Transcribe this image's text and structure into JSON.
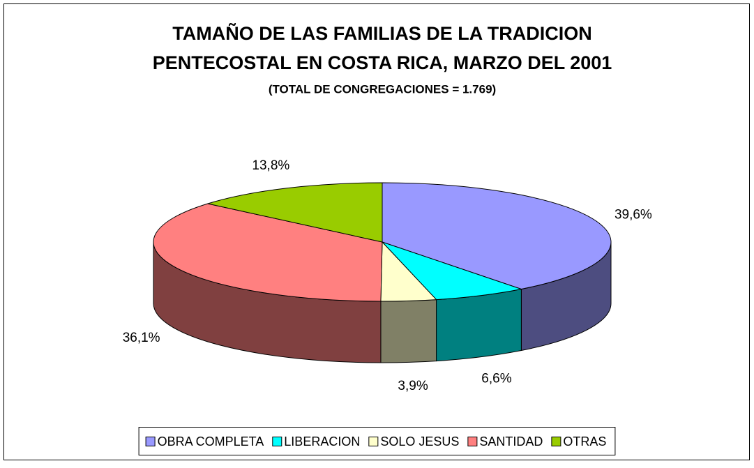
{
  "chart_data": {
    "type": "pie3d",
    "title": [
      "TAMAÑO DE LAS FAMILIAS DE LA TRADICION",
      "PENTECOSTAL EN COSTA RICA, MARZO DEL 2001"
    ],
    "subtitle": "(TOTAL DE CONGREGACIONES = 1.769)",
    "categories": [
      "OBRA COMPLETA",
      "LIBERACION",
      "SOLO JESUS",
      "SANTIDAD",
      "OTRAS"
    ],
    "values": [
      39.6,
      6.6,
      3.9,
      36.1,
      13.8
    ],
    "value_labels": [
      "39,6%",
      "6,6%",
      "3,9%",
      "36,1%",
      "13,8%"
    ],
    "colors": [
      "#9999ff",
      "#00ffff",
      "#ffffcc",
      "#ff8080",
      "#99cc00"
    ],
    "legend": "bottom"
  }
}
